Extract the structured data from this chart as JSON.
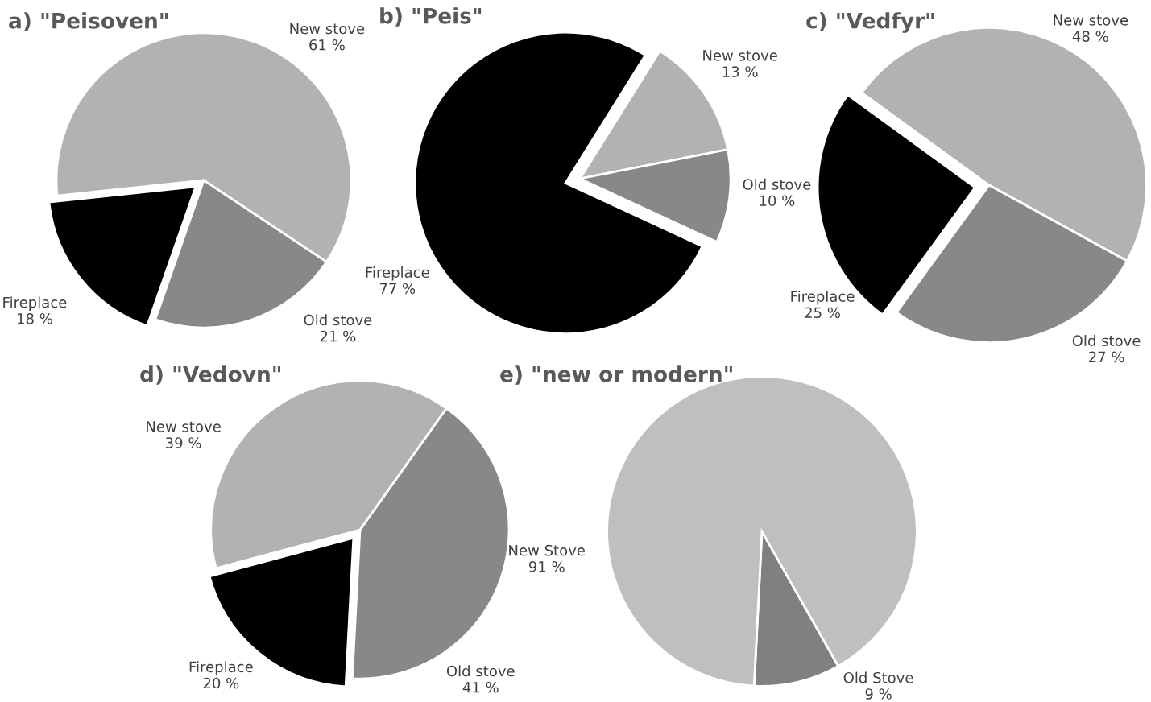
{
  "chart_data": [
    {
      "type": "pie",
      "title": "a) \"Peisoven\"",
      "categories": [
        "New stove",
        "Old stove",
        "Fireplace"
      ],
      "values": [
        61,
        21,
        18
      ],
      "colors": [
        "#b2b2b2",
        "#888888",
        "#000000"
      ],
      "value_labels": [
        "61 %",
        "21 %",
        "18 %"
      ]
    },
    {
      "type": "pie",
      "title": "b) \"Peis\"",
      "categories": [
        "New stove",
        "Old stove",
        "Fireplace"
      ],
      "values": [
        13,
        10,
        77
      ],
      "colors": [
        "#b2b2b2",
        "#888888",
        "#000000"
      ],
      "value_labels": [
        "13 %",
        "10 %",
        "77 %"
      ]
    },
    {
      "type": "pie",
      "title": "c) \"Vedfyr\"",
      "categories": [
        "New stove",
        "Old stove",
        "Fireplace"
      ],
      "values": [
        48,
        27,
        25
      ],
      "colors": [
        "#b2b2b2",
        "#888888",
        "#000000"
      ],
      "value_labels": [
        "48 %",
        "27 %",
        "25 %"
      ]
    },
    {
      "type": "pie",
      "title": "d) \"Vedovn\"",
      "categories": [
        "Old stove",
        "Fireplace",
        "New stove"
      ],
      "values": [
        41,
        20,
        39
      ],
      "colors": [
        "#888888",
        "#000000",
        "#b2b2b2"
      ],
      "value_labels": [
        "41 %",
        "20 %",
        "39 %"
      ]
    },
    {
      "type": "pie",
      "title": "e) \"new or modern\"",
      "categories": [
        "Old Stove",
        "New Stove"
      ],
      "values": [
        9,
        91
      ],
      "colors": [
        "#808080",
        "#bfbfbf"
      ],
      "value_labels": [
        "9 %",
        "91 %"
      ]
    }
  ]
}
